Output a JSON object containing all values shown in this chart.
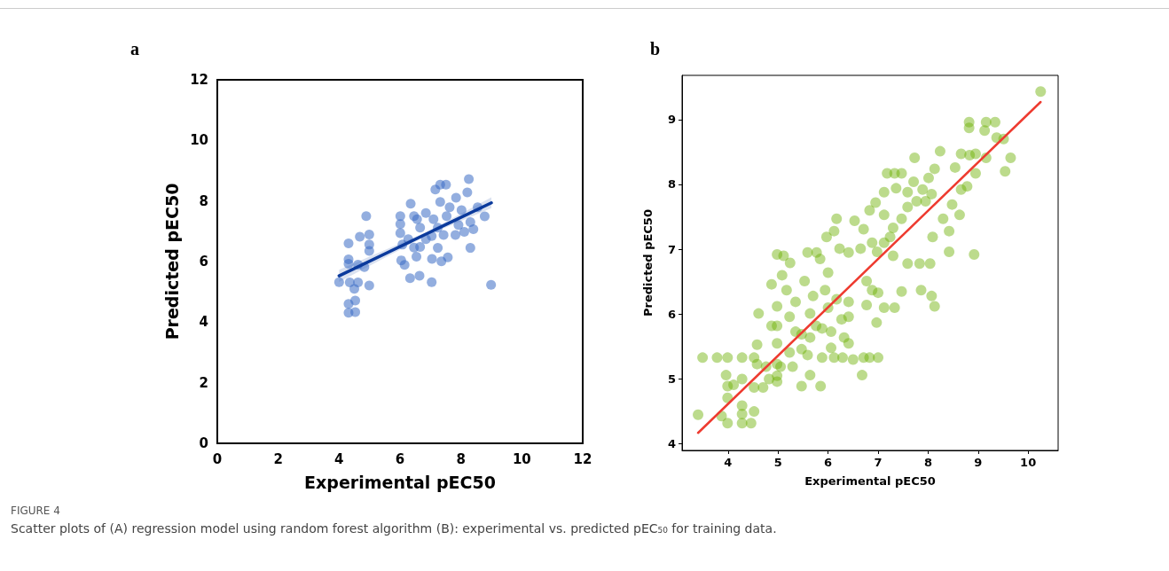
{
  "chart_data": [
    {
      "type": "scatter",
      "title": "a",
      "xlabel": "Experimental pEC50",
      "ylabel": "Predicted pEC50",
      "xlim": [
        0,
        12
      ],
      "ylim": [
        0,
        12
      ],
      "xticks": [
        0,
        2,
        4,
        6,
        8,
        10,
        12
      ],
      "yticks": [
        0,
        2,
        4,
        6,
        8,
        10,
        12
      ],
      "grid": false,
      "annotations": [
        "FIGURE 4",
        "Scatter plots of (A) regression model using random forest algorithm (B): experimental vs. predicted pEC₅₀ for training data."
      ],
      "series": [
        {
          "marker": "circle",
          "color": "#3a6cc4",
          "x": [
            4.0,
            4.31,
            4.89,
            4.31,
            4.31,
            4.68,
            4.99,
            4.99,
            4.99,
            4.62,
            4.83,
            4.35,
            4.62,
            4.5,
            4.99,
            4.31,
            4.53,
            4.31,
            4.53,
            6.35,
            6.01,
            6.01,
            6.01,
            6.08,
            6.04,
            6.15,
            6.33,
            6.64,
            7.04,
            6.54,
            7.05,
            7.36,
            7.57,
            7.24,
            6.66,
            7.16,
            7.32,
            7.51,
            8.26,
            8.21,
            7.84,
            7.32,
            8.31,
            8.99,
            6.46,
            6.85,
            7.1,
            6.66,
            7.24,
            7.53,
            7.63,
            8.02,
            8.55,
            8.78,
            8.41,
            8.11,
            7.82,
            7.43,
            6.85,
            6.27,
            6.56,
            8.31,
            7.92,
            7.04,
            6.46
          ],
          "values": [
            5.32,
            6.6,
            7.5,
            6.07,
            5.93,
            6.82,
            6.89,
            6.56,
            6.35,
            5.9,
            5.82,
            5.31,
            5.31,
            5.1,
            5.21,
            4.6,
            4.71,
            4.31,
            4.33,
            7.91,
            7.5,
            7.24,
            6.94,
            6.56,
            6.04,
            5.89,
            5.45,
            5.53,
            5.32,
            6.16,
            6.09,
            6.01,
            6.14,
            6.45,
            6.48,
            8.38,
            8.54,
            8.54,
            8.72,
            8.28,
            8.11,
            7.97,
            6.45,
            5.23,
            7.5,
            7.6,
            7.4,
            7.12,
            7.12,
            7.5,
            7.79,
            7.7,
            7.79,
            7.49,
            7.07,
            6.98,
            6.88,
            6.88,
            6.74,
            6.74,
            7.4,
            7.3,
            7.21,
            6.84,
            6.46
          ]
        },
        {
          "type": "line",
          "color": "#0b3a9c",
          "x": [
            4,
            6.9,
            9
          ],
          "values": [
            5.53,
            6.93,
            7.94
          ],
          "lower": [
            5.33,
            6.87,
            7.76
          ],
          "upper": [
            5.73,
            6.99,
            8.12
          ]
        }
      ]
    },
    {
      "type": "scatter",
      "title": "b",
      "xlabel": "Experimental pEC50",
      "ylabel": "Predicted pEC50",
      "xlim": [
        3.08,
        10.6
      ],
      "ylim": [
        3.9,
        9.68
      ],
      "xticks": [
        4,
        5,
        6,
        7,
        8,
        9,
        10
      ],
      "yticks": [
        4,
        5,
        6,
        7,
        8,
        9
      ],
      "grid": false,
      "series": [
        {
          "marker": "circle",
          "color": "#6aaf00",
          "x": [
            10.25,
            3.4,
            3.49,
            3.78,
            3.99,
            4.28,
            4.52,
            3.96,
            3.99,
            3.99,
            3.99,
            4.28,
            4.28,
            4.28,
            4.46,
            4.52,
            4.28,
            4.61,
            4.58,
            4.7,
            4.82,
            4.87,
            4.98,
            5.11,
            5.24,
            5.08,
            4.98,
            4.98,
            4.98,
            4.98,
            4.98,
            4.98,
            5.17,
            5.35,
            5.23,
            5.35,
            5.23,
            5.47,
            5.59,
            5.29,
            5.47,
            5.64,
            5.85,
            5.53,
            5.7,
            5.64,
            5.88,
            5.88,
            6.12,
            6.29,
            6.06,
            6.41,
            6.5,
            6.68,
            6.71,
            6.83,
            7.0,
            5.59,
            5.77,
            5.84,
            6.0,
            5.94,
            6.0,
            6.27,
            6.17,
            6.12,
            5.97,
            6.23,
            6.41,
            6.53,
            6.71,
            6.83,
            6.95,
            7.12,
            7.18,
            7.33,
            7.47,
            7.12,
            7.36,
            7.59,
            7.71,
            7.73,
            7.89,
            8.01,
            8.13,
            8.24,
            8.07,
            7.95,
            7.77,
            7.59,
            7.47,
            7.3,
            7.24,
            7.12,
            6.88,
            6.65,
            6.98,
            7.3,
            7.59,
            7.83,
            8.04,
            8.09,
            8.3,
            8.42,
            8.42,
            8.92,
            8.63,
            8.48,
            8.66,
            8.78,
            8.95,
            8.54,
            8.66,
            8.83,
            8.95,
            9.16,
            9.54,
            9.65,
            8.82,
            8.82,
            9.16,
            9.34,
            9.13,
            9.37,
            9.51,
            8.13,
            8.07,
            7.86,
            7.47,
            7.33,
            7.12,
            7.0,
            6.88,
            6.77,
            6.97,
            6.77,
            6.41,
            6.17,
            6.41,
            6.06,
            5.76,
            5.64,
            5.47,
            4.87,
            5.05,
            4.76,
            4.58,
            4.52,
            4.11,
            3.87,
            6.32
          ],
          "values": [
            9.43,
            4.45,
            5.33,
            5.33,
            5.33,
            5.33,
            5.33,
            5.06,
            4.89,
            4.71,
            4.32,
            4.32,
            4.46,
            4.59,
            4.32,
            4.5,
            5.0,
            6.01,
            5.53,
            4.87,
            5.0,
            6.46,
            6.92,
            6.9,
            6.79,
            6.6,
            6.12,
            5.82,
            5.55,
            5.23,
            5.05,
            4.96,
            6.37,
            6.19,
            5.96,
            5.73,
            5.41,
            5.46,
            5.37,
            5.19,
            4.89,
            5.06,
            4.89,
            6.51,
            6.28,
            6.01,
            5.78,
            5.33,
            5.33,
            5.33,
            5.48,
            5.55,
            5.3,
            5.06,
            5.33,
            5.33,
            5.33,
            6.95,
            6.95,
            6.85,
            6.64,
            6.37,
            6.1,
            5.92,
            7.47,
            7.28,
            7.19,
            7.01,
            6.95,
            7.44,
            7.31,
            7.6,
            7.72,
            7.53,
            8.17,
            8.17,
            8.17,
            7.88,
            7.94,
            7.88,
            8.04,
            8.41,
            7.92,
            8.1,
            8.24,
            8.51,
            7.85,
            7.74,
            7.74,
            7.65,
            7.47,
            7.33,
            7.19,
            7.1,
            7.1,
            7.01,
            6.96,
            6.9,
            6.78,
            6.78,
            6.78,
            7.19,
            7.47,
            7.28,
            6.96,
            6.92,
            7.53,
            7.69,
            7.92,
            7.97,
            8.17,
            8.26,
            8.47,
            8.45,
            8.47,
            8.41,
            8.2,
            8.41,
            8.96,
            8.87,
            8.96,
            8.96,
            8.83,
            8.72,
            8.7,
            6.12,
            6.28,
            6.37,
            6.35,
            6.1,
            6.1,
            6.33,
            6.37,
            6.51,
            5.87,
            6.14,
            6.19,
            6.23,
            5.96,
            5.73,
            5.82,
            5.64,
            5.69,
            5.82,
            5.19,
            5.19,
            5.23,
            4.87,
            4.91,
            4.43,
            5.64
          ]
        },
        {
          "type": "line",
          "color": "#ee3b30",
          "x": [
            3.4,
            10.25
          ],
          "values": [
            4.17,
            9.27
          ]
        }
      ]
    }
  ]
}
